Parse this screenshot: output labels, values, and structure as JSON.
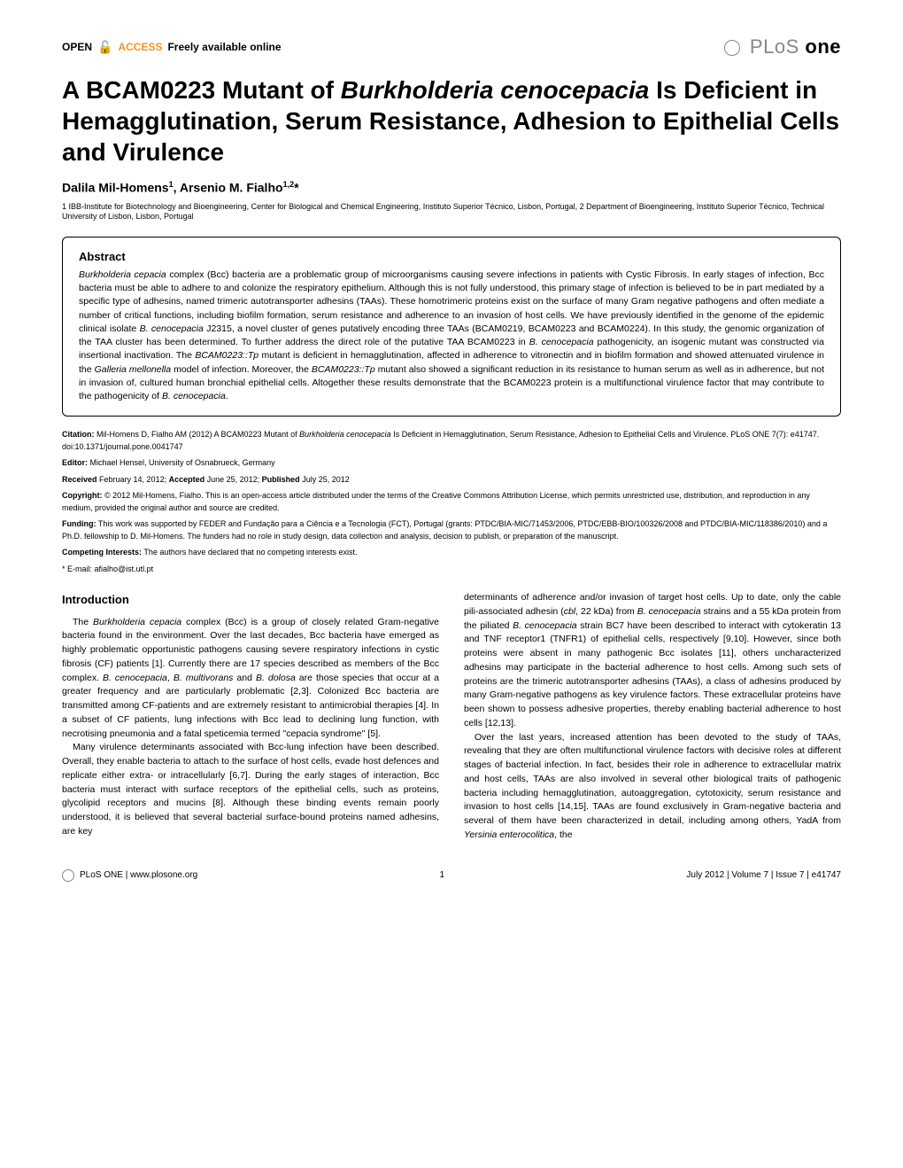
{
  "header": {
    "oa_prefix": "OPEN",
    "oa_suffix": "ACCESS",
    "oa_tagline": "Freely available online",
    "journal_prefix": "PLoS",
    "journal_suffix": "one"
  },
  "title": {
    "part1": "A BCAM0223 Mutant of ",
    "italic1": "Burkholderia cenocepacia",
    "part2": " Is Deficient in Hemagglutination, Serum Resistance, Adhesion to Epithelial Cells and Virulence"
  },
  "authors": {
    "a1_name": "Dalila Mil-Homens",
    "a1_sup": "1",
    "a2_name": "Arsenio M. Fialho",
    "a2_sup": "1,2",
    "a2_corr": "*"
  },
  "affiliations": "1 IBB-Institute for Biotechnology and Bioengineering, Center for Biological and Chemical Engineering, Instituto Superior Técnico, Lisbon, Portugal, 2 Department of Bioengineering, Instituto Superior Técnico, Technical University of Lisbon, Lisbon, Portugal",
  "abstract": {
    "heading": "Abstract",
    "s1": "Burkholderia cepacia",
    "t1": " complex (Bcc) bacteria are a problematic group of microorganisms causing severe infections in patients with Cystic Fibrosis. In early stages of infection, Bcc bacteria must be able to adhere to and colonize the respiratory epithelium. Although this is not fully understood, this primary stage of infection is believed to be in part mediated by a specific type of adhesins, named trimeric autotransporter adhesins (TAAs). These homotrimeric proteins exist on the surface of many Gram negative pathogens and often mediate a number of critical functions, including biofilm formation, serum resistance and adherence to an invasion of host cells. We have previously identified in the genome of the epidemic clinical isolate ",
    "s2": "B. cenocepacia",
    "t2": " J2315, a novel cluster of genes putatively encoding three TAAs (BCAM0219, BCAM0223 and BCAM0224). In this study, the genomic organization of the TAA cluster has been determined. To further address the direct role of the putative TAA BCAM0223 in ",
    "s3": "B. cenocepacia",
    "t3": " pathogenicity, an isogenic mutant was constructed via insertional inactivation. The ",
    "s4": "BCAM0223::Tp",
    "t4": " mutant is deficient in hemagglutination, affected in adherence to vitronectin and in biofilm formation and showed attenuated virulence in the ",
    "s5": "Galleria mellonella",
    "t5": " model of infection. Moreover, the ",
    "s6": "BCAM0223::Tp",
    "t6": " mutant also showed a significant reduction in its resistance to human serum as well as in adherence, but not in invasion of, cultured human bronchial epithelial cells. Altogether these results demonstrate that the BCAM0223 protein is a multifunctional virulence factor that may contribute to the pathogenicity of ",
    "s7": "B. cenocepacia",
    "t7": "."
  },
  "meta": {
    "citation_label": "Citation:",
    "citation_a": " Mil-Homens D, Fialho AM (2012) A BCAM0223 Mutant of ",
    "citation_i": "Burkholderia cenocepacia",
    "citation_b": " Is Deficient in Hemagglutination, Serum Resistance, Adhesion to Epithelial Cells and Virulence. PLoS ONE 7(7): e41747. doi:10.1371/journal.pone.0041747",
    "editor_label": "Editor:",
    "editor_text": " Michael Hensel, University of Osnabrueck, Germany",
    "received_label": "Received",
    "received_text": " February 14, 2012; ",
    "accepted_label": "Accepted",
    "accepted_text": " June 25, 2012; ",
    "published_label": "Published",
    "published_text": " July 25, 2012",
    "copyright_label": "Copyright:",
    "copyright_text": " © 2012 Mil-Homens, Fialho. This is an open-access article distributed under the terms of the Creative Commons Attribution License, which permits unrestricted use, distribution, and reproduction in any medium, provided the original author and source are credited.",
    "funding_label": "Funding:",
    "funding_text": " This work was supported by FEDER and Fundação para a Ciência e a Tecnologia (FCT), Portugal (grants: PTDC/BIA-MIC/71453/2006, PTDC/EBB-BIO/100326/2008 and PTDC/BIA-MIC/118386/2010) and a Ph.D. fellowship to D. Mil-Homens. The funders had no role in study design, data collection and analysis, decision to publish, or preparation of the manuscript.",
    "competing_label": "Competing Interests:",
    "competing_text": " The authors have declared that no competing interests exist.",
    "email_label": "* E-mail: ",
    "email_text": "afialho@ist.utl.pt"
  },
  "intro": {
    "heading": "Introduction",
    "p1_a": "The ",
    "p1_i1": "Burkholderia cepacia",
    "p1_b": " complex (Bcc) is a group of closely related Gram-negative bacteria found in the environment. Over the last decades, Bcc bacteria have emerged as highly problematic opportunistic pathogens causing severe respiratory infections in cystic fibrosis (CF) patients [1]. Currently there are 17 species described as members of the Bcc complex. ",
    "p1_i2": "B. cenocepacia",
    "p1_c": ", ",
    "p1_i3": "B. multivorans",
    "p1_d": " and ",
    "p1_i4": "B. dolosa",
    "p1_e": " are those species that occur at a greater frequency and are particularly problematic [2,3]. Colonized Bcc bacteria are transmitted among CF-patients and are extremely resistant to antimicrobial therapies [4]. In a subset of CF patients, lung infections with Bcc lead to declining lung function, with necrotising pneumonia and a fatal speticemia termed ''cepacia syndrome'' [5].",
    "p2": "Many virulence determinants associated with Bcc-lung infection have been described. Overall, they enable bacteria to attach to the surface of host cells, evade host defences and replicate either extra- or intracellularly [6,7]. During the early stages of interaction, Bcc bacteria must interact with surface receptors of the epithelial cells, such as proteins, glycolipid receptors and mucins [8]. Although these binding events remain poorly understood, it is believed that several bacterial surface-bound proteins named adhesins, are key",
    "p3_a": "determinants of adherence and/or invasion of target host cells. Up to date, only the cable pili-associated adhesin (",
    "p3_i1": "cbl",
    "p3_b": ", 22 kDa) from ",
    "p3_i2": "B. cenocepacia",
    "p3_c": " strains and a 55 kDa protein from the piliated ",
    "p3_i3": "B. cenocepacia",
    "p3_d": " strain BC7 have been described to interact with cytokeratin 13 and TNF receptor1 (TNFR1) of epithelial cells, respectively [9,10]. However, since both proteins were absent in many pathogenic Bcc isolates [11], others uncharacterized adhesins may participate in the bacterial adherence to host cells. Among such sets of proteins are the trimeric autotransporter adhesins (TAAs), a class of adhesins produced by many Gram-negative pathogens as key virulence factors. These extracellular proteins have been shown to possess adhesive properties, thereby enabling bacterial adherence to host cells [12,13].",
    "p4_a": "Over the last years, increased attention has been devoted to the study of TAAs, revealing that they are often multifunctional virulence factors with decisive roles at different stages of bacterial infection. In fact, besides their role in adherence to extracellular matrix and host cells, TAAs are also involved in several other biological traits of pathogenic bacteria including hemagglutination, autoaggregation, cytotoxicity, serum resistance and invasion to host cells [14,15]. TAAs are found exclusively in Gram-negative bacteria and several of them have been characterized in detail, including among others, YadA from ",
    "p4_i1": "Yersinia enterocolitica",
    "p4_b": ", the"
  },
  "footer": {
    "site": "PLoS ONE | www.plosone.org",
    "page": "1",
    "issue": "July 2012 | Volume 7 | Issue 7 | e41747"
  }
}
